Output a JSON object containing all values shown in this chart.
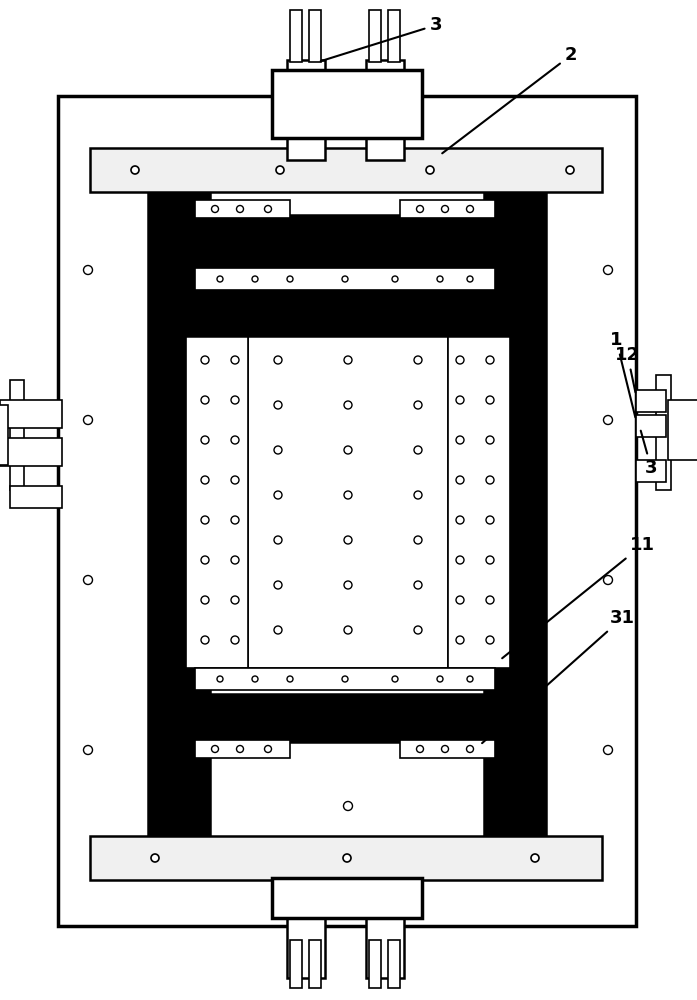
{
  "bg_color": "#ffffff",
  "line_color": "#000000",
  "fig_width": 6.97,
  "fig_height": 10.0,
  "dpi": 100
}
